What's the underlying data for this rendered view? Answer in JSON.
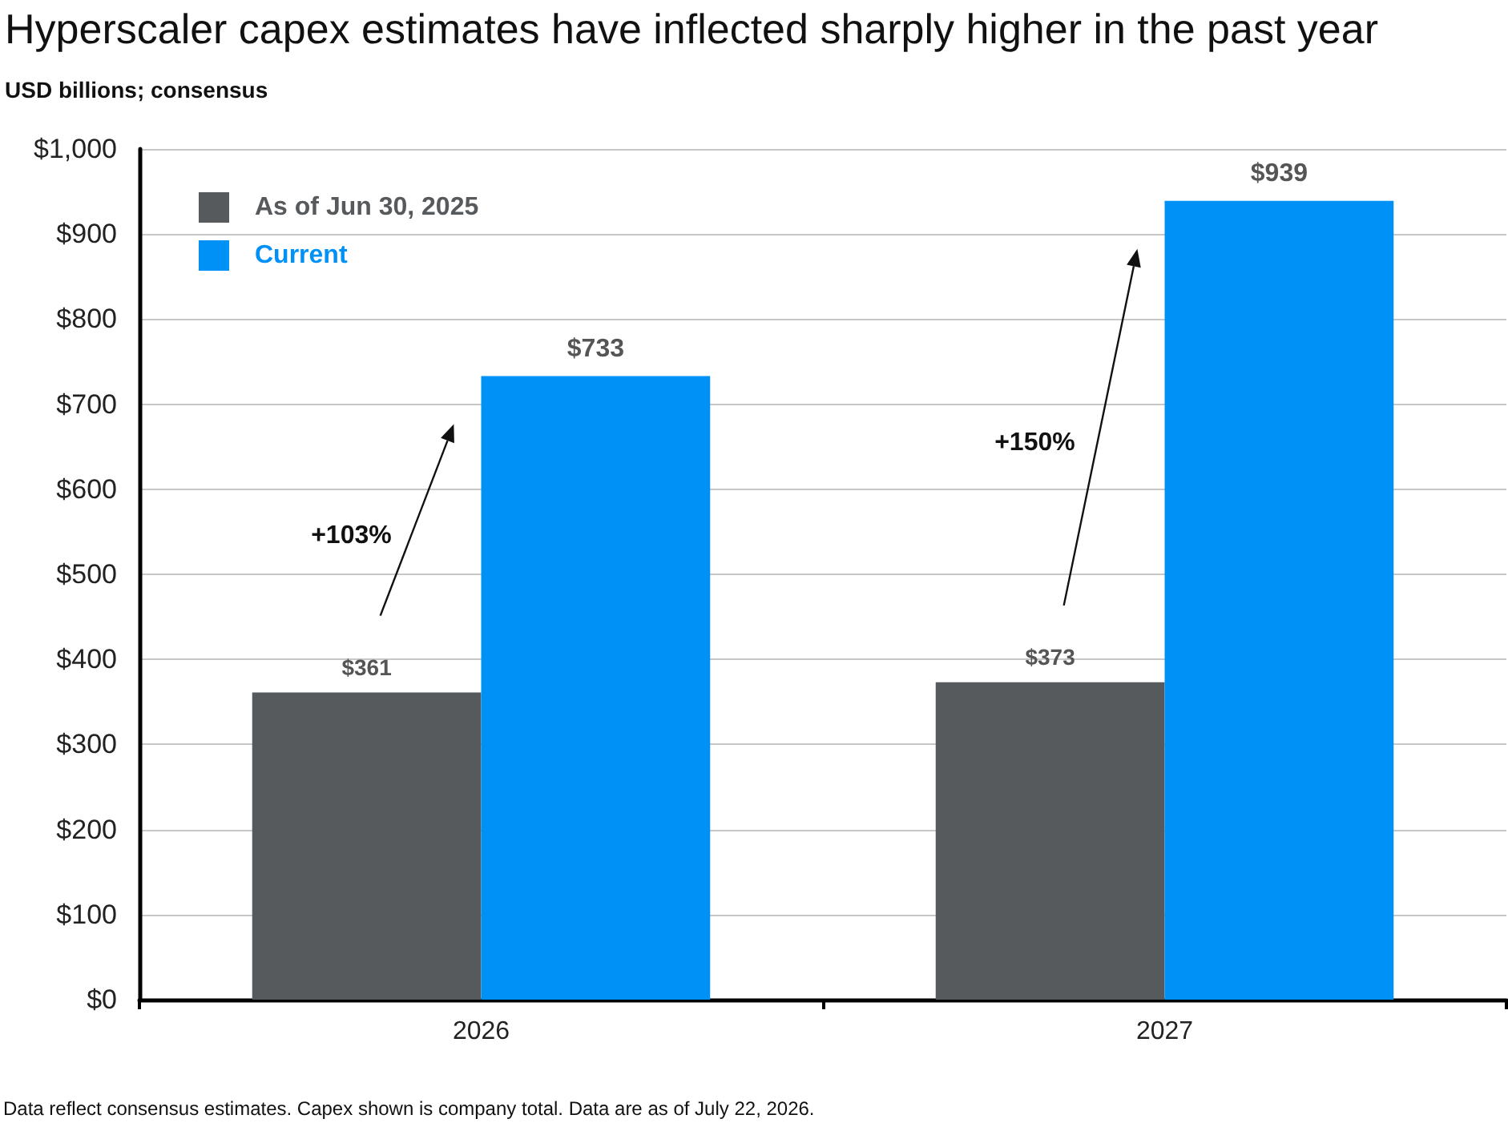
{
  "chart_data": {
    "type": "bar",
    "title": "Hyperscaler capex estimates have inflected sharply higher in the past year",
    "subtitle": "USD billions; consensus",
    "categories": [
      "2026",
      "2027"
    ],
    "series": [
      {
        "name": "As of Jun 30, 2025",
        "color": "#575a5d",
        "values": [
          361,
          373
        ],
        "value_labels": [
          "$361",
          "$373"
        ]
      },
      {
        "name": "Current",
        "color": "#0091f7",
        "values": [
          733,
          939
        ],
        "value_labels": [
          "$733",
          "$939"
        ]
      }
    ],
    "ylim": [
      0,
      1000
    ],
    "yticks": [
      {
        "value": 0,
        "label": "$0"
      },
      {
        "value": 100,
        "label": "$100"
      },
      {
        "value": 200,
        "label": "$200"
      },
      {
        "value": 300,
        "label": "$300"
      },
      {
        "value": 400,
        "label": "$400"
      },
      {
        "value": 500,
        "label": "$500"
      },
      {
        "value": 600,
        "label": "$600"
      },
      {
        "value": 700,
        "label": "$700"
      },
      {
        "value": 800,
        "label": "$800"
      },
      {
        "value": 900,
        "label": "$900"
      },
      {
        "value": 1000,
        "label": "$1,000"
      }
    ],
    "grid": "y",
    "legend": "top left",
    "annotations": [
      "+103%",
      "+150%",
      "Data reflect consensus estimates. Capex shown is company total. Data are as of July 22, 2026."
    ]
  }
}
